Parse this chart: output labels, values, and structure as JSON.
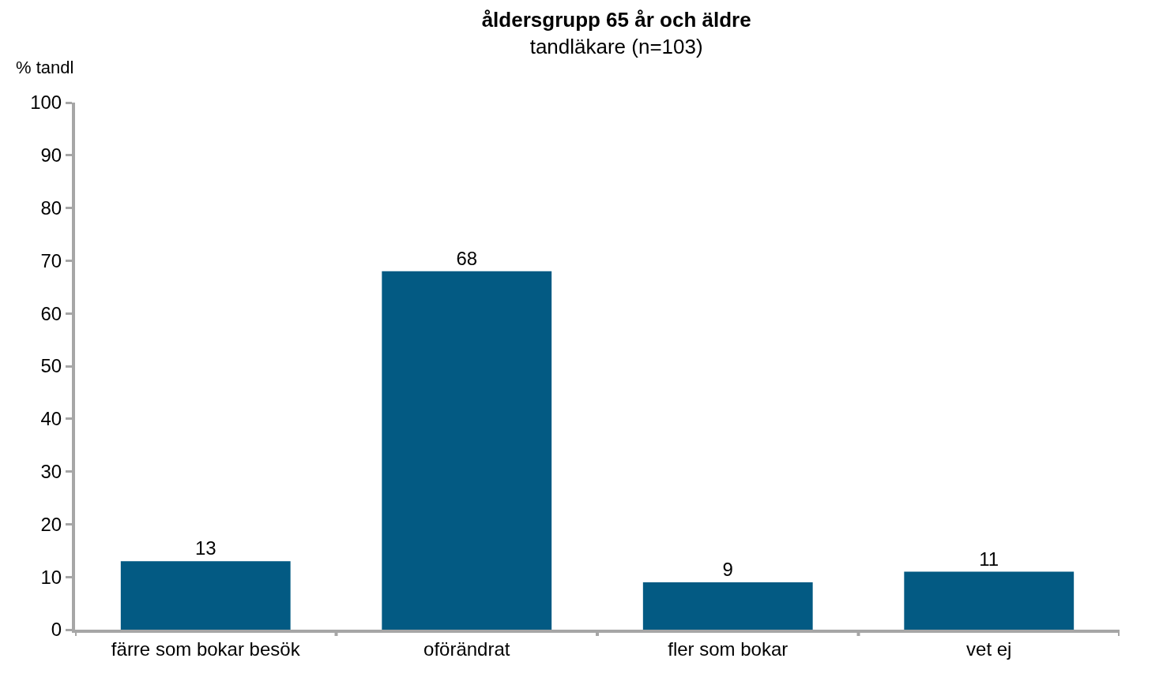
{
  "chart_data": {
    "type": "bar",
    "title": "åldersgrupp 65 år och äldre",
    "subtitle": "tandläkare (n=103)",
    "ylabel": "% tandl",
    "categories": [
      "färre som bokar besök",
      "oförändrat",
      "fler som bokar",
      "vet ej"
    ],
    "values": [
      13,
      68,
      9,
      11
    ],
    "color": "#035a83",
    "data_labels": true,
    "ylim": [
      0,
      100
    ],
    "yticks": [
      0,
      10,
      20,
      30,
      40,
      50,
      60,
      70,
      80,
      90,
      100
    ]
  }
}
